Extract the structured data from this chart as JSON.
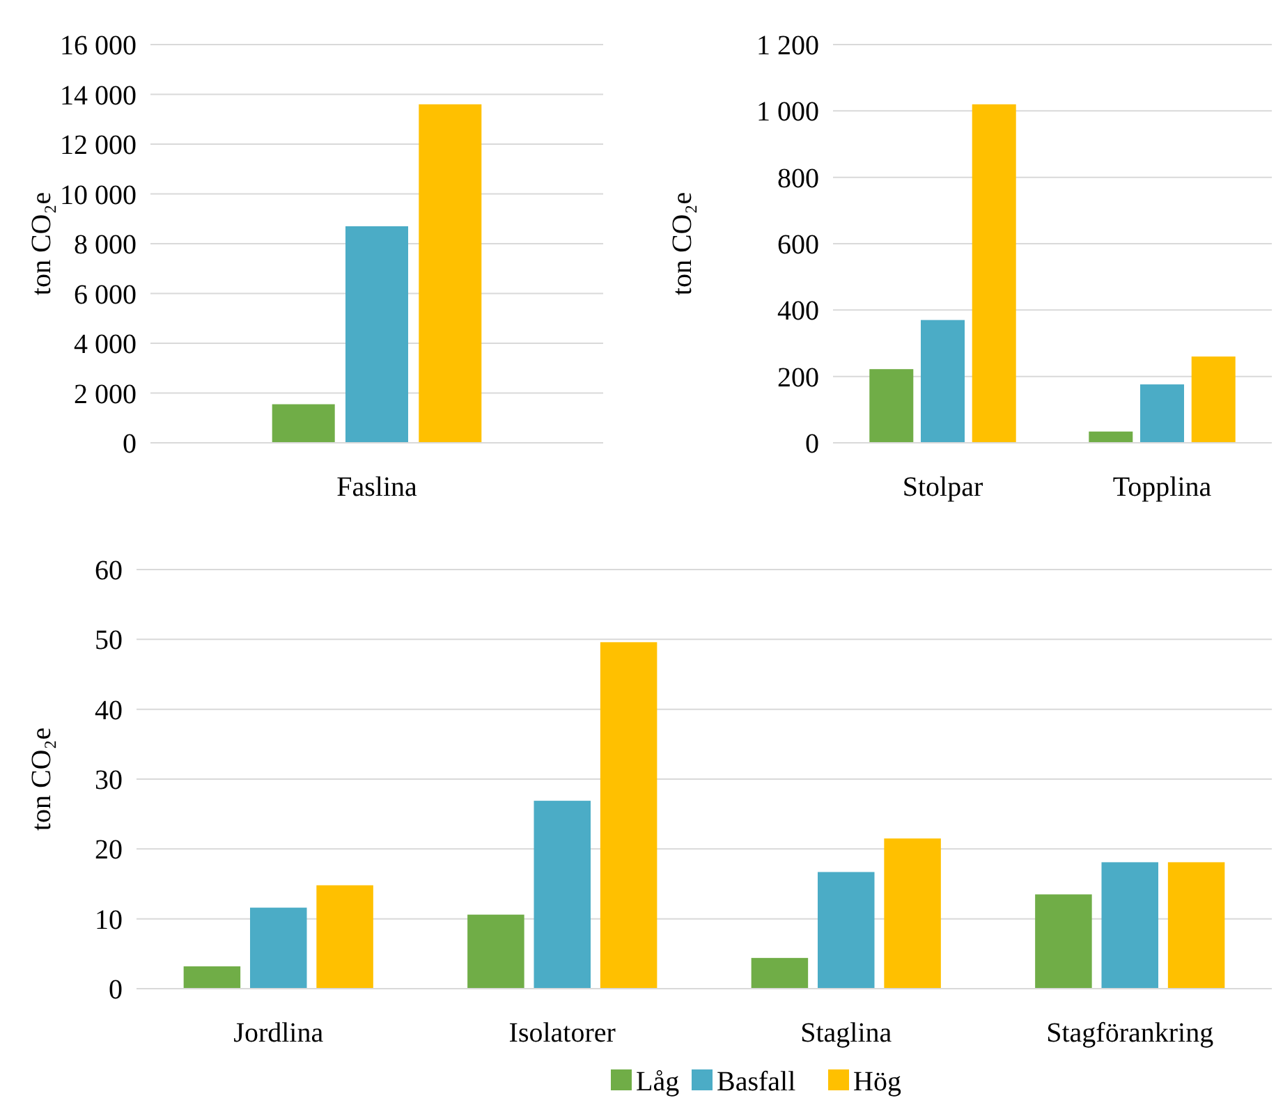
{
  "chart_data": [
    {
      "type": "bar",
      "ylabel": "ton CO₂e",
      "categories": [
        "Faslina"
      ],
      "series": [
        {
          "color": "#70ad47",
          "values": [
            1550
          ]
        },
        {
          "color": "#4bacc6",
          "values": [
            8700
          ]
        },
        {
          "color": "#ffc000",
          "values": [
            13600
          ]
        }
      ],
      "ylim": [
        0,
        16000
      ],
      "yticks": [
        0,
        {
          "value": 2000,
          "label": "2 000"
        },
        {
          "value": 4000,
          "label": "4 000"
        },
        {
          "value": 6000,
          "label": "6 000"
        },
        {
          "value": 8000,
          "label": "8 000"
        },
        {
          "value": 10000,
          "label": "10 000"
        },
        {
          "value": 12000,
          "label": "12 000"
        },
        {
          "value": 14000,
          "label": "14 000"
        },
        {
          "value": 16000,
          "label": "16 000"
        }
      ],
      "grid": "y",
      "legend": false
    },
    {
      "type": "bar",
      "ylabel": "ton CO₂e",
      "categories": [
        "Stolpar",
        "Topplina"
      ],
      "series": [
        {
          "color": "#70ad47",
          "values": [
            222,
            34
          ]
        },
        {
          "color": "#4bacc6",
          "values": [
            370,
            176
          ]
        },
        {
          "color": "#ffc000",
          "values": [
            1020,
            260
          ]
        }
      ],
      "ylim": [
        0,
        1200
      ],
      "yticks": [
        0,
        200,
        400,
        600,
        800,
        {
          "value": 1000,
          "label": "1 000"
        },
        {
          "value": 1200,
          "label": "1 200"
        }
      ],
      "grid": "y",
      "legend": false
    },
    {
      "type": "bar",
      "ylabel": "ton CO₂e",
      "categories": [
        "Jordlina",
        "Isolatorer",
        "Staglina",
        "Stagförankring"
      ],
      "series": [
        {
          "name": "Låg",
          "color": "#70ad47",
          "values": [
            3.2,
            10.6,
            4.4,
            13.5
          ]
        },
        {
          "name": "Basfall",
          "color": "#4bacc6",
          "values": [
            11.6,
            26.9,
            16.7,
            18.1
          ]
        },
        {
          "name": "Hög",
          "color": "#ffc000",
          "values": [
            14.8,
            49.6,
            21.5,
            18.1
          ]
        }
      ],
      "ylim": [
        0,
        60
      ],
      "yticks": [
        0,
        10,
        20,
        30,
        40,
        50,
        60
      ],
      "grid": "y",
      "legend": "bottom"
    }
  ]
}
